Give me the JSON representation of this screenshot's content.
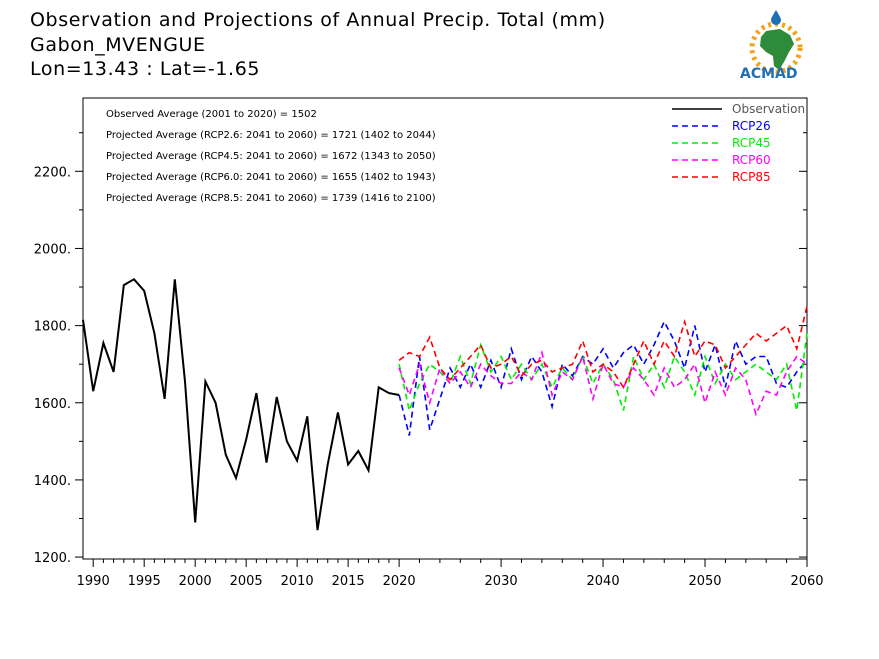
{
  "header": {
    "title": "Observation and Projections of Annual Precip. Total (mm)",
    "location": "Gabon_MVENGUE",
    "coords": "Lon=13.43 : Lat=-1.65"
  },
  "logo": {
    "text": "ACMAD"
  },
  "annotations": [
    "Observed Average (2001 to 2020) = 1502",
    "Projected Average (RCP2.6: 2041 to 2060) = 1721 (1402 to 2044)",
    "Projected Average (RCP4.5: 2041 to 2060) = 1672 (1343 to 2050)",
    "Projected Average (RCP6.0: 2041 to 2060) = 1655 (1402 to 1943)",
    "Projected Average (RCP8.5: 2041 to 2060) = 1739 (1416 to 2100)"
  ],
  "chart_data": {
    "type": "line",
    "title": "Observation and Projections of Annual Precip. Total (mm)",
    "xlim": [
      1989,
      2060
    ],
    "ylim": [
      1195,
      2390
    ],
    "x_ticks": [
      1990,
      1995,
      2000,
      2005,
      2010,
      2015,
      2020,
      2030,
      2040,
      2050,
      2060
    ],
    "y_ticks": [
      1200,
      1400,
      1600,
      1800,
      2000,
      2200
    ],
    "y_tick_labels": [
      "1200.",
      "1400.",
      "1600.",
      "1800.",
      "2000.",
      "2200."
    ],
    "legend_position": "top-right",
    "series": [
      {
        "name": "Observation",
        "color": "#000000",
        "dash": "solid",
        "x": [
          1989,
          1990,
          1991,
          1992,
          1993,
          1994,
          1995,
          1996,
          1997,
          1998,
          1999,
          2000,
          2001,
          2002,
          2003,
          2004,
          2005,
          2006,
          2007,
          2008,
          2009,
          2010,
          2011,
          2012,
          2013,
          2014,
          2015,
          2016,
          2017,
          2018,
          2019,
          2020
        ],
        "y": [
          1815,
          1630,
          1755,
          1680,
          1905,
          1920,
          1890,
          1780,
          1610,
          1920,
          1655,
          1290,
          1655,
          1600,
          1465,
          1405,
          1505,
          1625,
          1445,
          1615,
          1500,
          1450,
          1565,
          1270,
          1440,
          1575,
          1440,
          1475,
          1425,
          1640,
          1625,
          1620
        ]
      },
      {
        "name": "RCP26",
        "color": "#0000ff",
        "dash": "dashed",
        "x": [
          2020,
          2021,
          2022,
          2023,
          2024,
          2025,
          2026,
          2027,
          2028,
          2029,
          2030,
          2031,
          2032,
          2033,
          2034,
          2035,
          2036,
          2037,
          2038,
          2039,
          2040,
          2041,
          2042,
          2043,
          2044,
          2045,
          2046,
          2047,
          2048,
          2049,
          2050,
          2051,
          2052,
          2053,
          2054,
          2055,
          2056,
          2057,
          2058,
          2059,
          2060
        ],
        "y": [
          1620,
          1515,
          1720,
          1530,
          1610,
          1690,
          1640,
          1700,
          1640,
          1710,
          1640,
          1740,
          1660,
          1720,
          1680,
          1590,
          1700,
          1670,
          1720,
          1700,
          1740,
          1690,
          1730,
          1750,
          1700,
          1750,
          1810,
          1760,
          1690,
          1800,
          1680,
          1750,
          1640,
          1760,
          1700,
          1720,
          1720,
          1650,
          1640,
          1680,
          1710
        ]
      },
      {
        "name": "RCP45",
        "color": "#00ee00",
        "dash": "dashed",
        "x": [
          2020,
          2021,
          2022,
          2023,
          2024,
          2025,
          2026,
          2027,
          2028,
          2029,
          2030,
          2031,
          2032,
          2033,
          2034,
          2035,
          2036,
          2037,
          2038,
          2039,
          2040,
          2041,
          2042,
          2043,
          2044,
          2045,
          2046,
          2047,
          2048,
          2049,
          2050,
          2051,
          2052,
          2053,
          2054,
          2055,
          2056,
          2057,
          2058,
          2059,
          2060
        ],
        "y": [
          1700,
          1580,
          1650,
          1700,
          1680,
          1650,
          1720,
          1650,
          1750,
          1680,
          1720,
          1660,
          1700,
          1660,
          1700,
          1640,
          1690,
          1660,
          1720,
          1650,
          1700,
          1660,
          1580,
          1720,
          1660,
          1700,
          1640,
          1720,
          1680,
          1620,
          1720,
          1650,
          1700,
          1660,
          1680,
          1700,
          1680,
          1660,
          1700,
          1580,
          1780
        ]
      },
      {
        "name": "RCP60",
        "color": "#ff00ff",
        "dash": "dashed",
        "x": [
          2020,
          2021,
          2022,
          2023,
          2024,
          2025,
          2026,
          2027,
          2028,
          2029,
          2030,
          2031,
          2032,
          2033,
          2034,
          2035,
          2036,
          2037,
          2038,
          2039,
          2040,
          2041,
          2042,
          2043,
          2044,
          2045,
          2046,
          2047,
          2048,
          2049,
          2050,
          2051,
          2052,
          2053,
          2054,
          2055,
          2056,
          2057,
          2058,
          2059,
          2060
        ],
        "y": [
          1690,
          1620,
          1700,
          1600,
          1690,
          1650,
          1680,
          1640,
          1700,
          1670,
          1650,
          1650,
          1680,
          1660,
          1730,
          1620,
          1680,
          1660,
          1720,
          1610,
          1700,
          1650,
          1640,
          1690,
          1660,
          1620,
          1690,
          1640,
          1660,
          1700,
          1600,
          1680,
          1620,
          1690,
          1660,
          1570,
          1630,
          1620,
          1680,
          1720,
          1700
        ]
      },
      {
        "name": "RCP85",
        "color": "#ff0000",
        "dash": "dashed",
        "x": [
          2020,
          2021,
          2022,
          2023,
          2024,
          2025,
          2026,
          2027,
          2028,
          2029,
          2030,
          2031,
          2032,
          2033,
          2034,
          2035,
          2036,
          2037,
          2038,
          2039,
          2040,
          2041,
          2042,
          2043,
          2044,
          2045,
          2046,
          2047,
          2048,
          2049,
          2050,
          2051,
          2052,
          2053,
          2054,
          2055,
          2056,
          2057,
          2058,
          2059,
          2060
        ],
        "y": [
          1710,
          1730,
          1720,
          1770,
          1690,
          1660,
          1690,
          1720,
          1750,
          1690,
          1700,
          1720,
          1670,
          1700,
          1710,
          1680,
          1690,
          1700,
          1760,
          1680,
          1700,
          1680,
          1640,
          1700,
          1760,
          1700,
          1760,
          1720,
          1810,
          1720,
          1760,
          1750,
          1690,
          1720,
          1750,
          1780,
          1760,
          1780,
          1800,
          1740,
          1850
        ]
      }
    ]
  }
}
